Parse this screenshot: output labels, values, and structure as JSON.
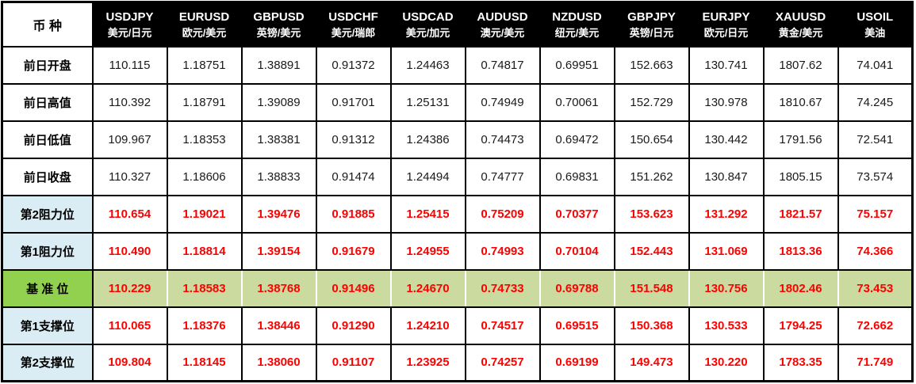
{
  "table": {
    "corner_label": "币 种",
    "columns": [
      {
        "pair": "USDJPY",
        "name_cn": "美元/日元"
      },
      {
        "pair": "EURUSD",
        "name_cn": "欧元/美元"
      },
      {
        "pair": "GBPUSD",
        "name_cn": "英镑/美元"
      },
      {
        "pair": "USDCHF",
        "name_cn": "美元/瑞郎"
      },
      {
        "pair": "USDCAD",
        "name_cn": "美元/加元"
      },
      {
        "pair": "AUDUSD",
        "name_cn": "澳元/美元"
      },
      {
        "pair": "NZDUSD",
        "name_cn": "纽元/美元"
      },
      {
        "pair": "GBPJPY",
        "name_cn": "英镑/日元"
      },
      {
        "pair": "EURJPY",
        "name_cn": "欧元/日元"
      },
      {
        "pair": "XAUUSD",
        "name_cn": "黄金/美元"
      },
      {
        "pair": "USOIL",
        "name_cn": "美油"
      }
    ],
    "rows": [
      {
        "label": "前日开盘",
        "type": "prev",
        "values": [
          "110.115",
          "1.18751",
          "1.38891",
          "0.91372",
          "1.24463",
          "0.74817",
          "0.69951",
          "152.663",
          "130.741",
          "1807.62",
          "74.041"
        ]
      },
      {
        "label": "前日高值",
        "type": "prev",
        "values": [
          "110.392",
          "1.18791",
          "1.39089",
          "0.91701",
          "1.25131",
          "0.74949",
          "0.70061",
          "152.729",
          "130.978",
          "1810.67",
          "74.245"
        ]
      },
      {
        "label": "前日低值",
        "type": "prev",
        "values": [
          "109.967",
          "1.18353",
          "1.38381",
          "0.91312",
          "1.24386",
          "0.74473",
          "0.69472",
          "150.654",
          "130.442",
          "1791.56",
          "72.541"
        ]
      },
      {
        "label": "前日收盘",
        "type": "prev",
        "values": [
          "110.327",
          "1.18606",
          "1.38833",
          "0.91474",
          "1.24494",
          "0.74777",
          "0.69831",
          "151.262",
          "130.847",
          "1805.15",
          "73.574"
        ]
      },
      {
        "label": "第2阻力位",
        "type": "resistance",
        "values": [
          "110.654",
          "1.19021",
          "1.39476",
          "0.91885",
          "1.25415",
          "0.75209",
          "0.70377",
          "153.623",
          "131.292",
          "1821.57",
          "75.157"
        ]
      },
      {
        "label": "第1阻力位",
        "type": "resistance",
        "values": [
          "110.490",
          "1.18814",
          "1.39154",
          "0.91679",
          "1.24955",
          "0.74993",
          "0.70104",
          "152.443",
          "131.069",
          "1813.36",
          "74.366"
        ]
      },
      {
        "label": "基 准 位",
        "type": "pivot",
        "values": [
          "110.229",
          "1.18583",
          "1.38768",
          "0.91496",
          "1.24670",
          "0.74733",
          "0.69788",
          "151.548",
          "130.756",
          "1802.46",
          "73.453"
        ]
      },
      {
        "label": "第1支撑位",
        "type": "support",
        "values": [
          "110.065",
          "1.18376",
          "1.38446",
          "0.91290",
          "1.24210",
          "0.74517",
          "0.69515",
          "150.368",
          "130.533",
          "1794.25",
          "72.662"
        ]
      },
      {
        "label": "第2支撑位",
        "type": "support",
        "values": [
          "109.804",
          "1.18145",
          "1.38060",
          "0.91107",
          "1.23925",
          "0.74257",
          "0.69199",
          "149.473",
          "130.220",
          "1783.35",
          "71.749"
        ]
      }
    ]
  },
  "colors": {
    "header_bg": "#000000",
    "header_text": "#FFFFFF",
    "level_label_bg": "#DAECF4",
    "pivot_label_bg": "#92D050",
    "pivot_row_bg": "#CBDA9E",
    "value_red": "#FF0000",
    "value_black": "#1A1A1A",
    "border": "#000000"
  }
}
